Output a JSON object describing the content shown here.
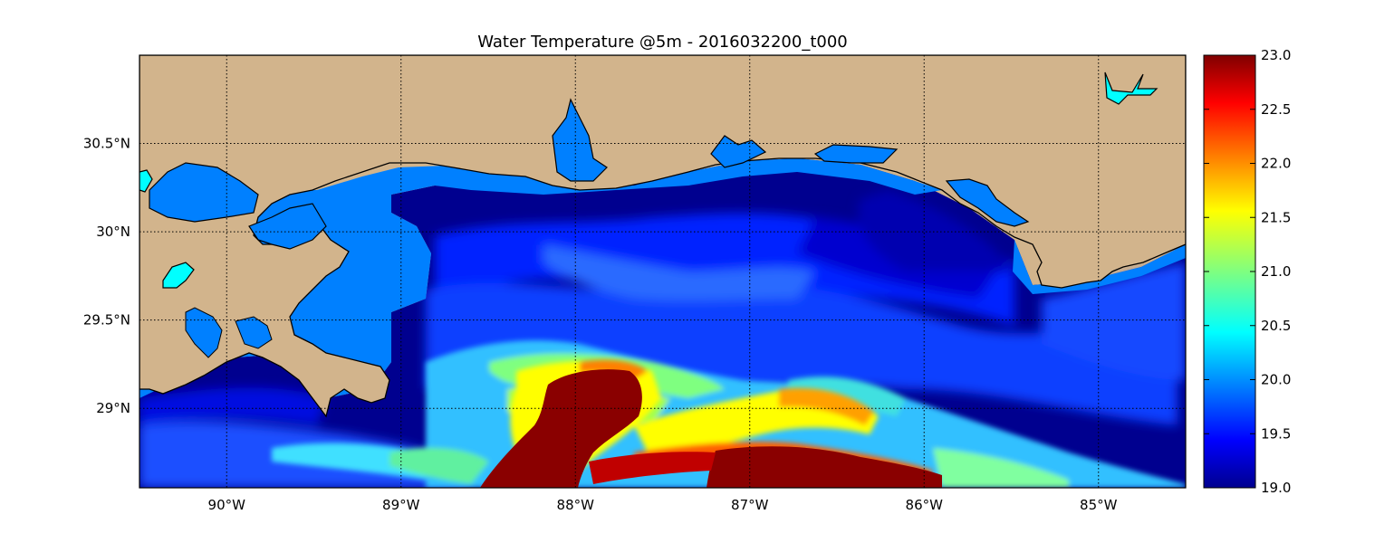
{
  "title": "Water Temperature @5m - 2016032200_t000",
  "x_ticks": [
    {
      "lon": -90,
      "label": "90°W"
    },
    {
      "lon": -89,
      "label": "89°W"
    },
    {
      "lon": -88,
      "label": "88°W"
    },
    {
      "lon": -87,
      "label": "87°W"
    },
    {
      "lon": -86,
      "label": "86°W"
    },
    {
      "lon": -85,
      "label": "85°W"
    }
  ],
  "y_ticks": [
    {
      "lat": 30.5,
      "label": "30.5°N"
    },
    {
      "lat": 30.0,
      "label": "30°N"
    },
    {
      "lat": 29.5,
      "label": "29.5°N"
    },
    {
      "lat": 29.0,
      "label": "29°N"
    }
  ],
  "colorbar": {
    "min": 19.0,
    "max": 23.0,
    "colormap": "jet",
    "ticks": [
      "19.0",
      "19.5",
      "20.0",
      "20.5",
      "21.0",
      "21.5",
      "22.0",
      "22.5",
      "23.0"
    ]
  },
  "colors": {
    "land": "#d2b48c",
    "shelf_mask": "#0080ff",
    "cold": "#00008f",
    "warm": "#800000",
    "inland_water": "#00ffff",
    "gridline": "#000000"
  },
  "lon_range": [
    -90.5,
    -84.5
  ],
  "lat_range": [
    28.55,
    31.0
  ],
  "features": [
    "coastline",
    "land",
    "temperature-field",
    "lat-lon-grid",
    "colorbar"
  ]
}
